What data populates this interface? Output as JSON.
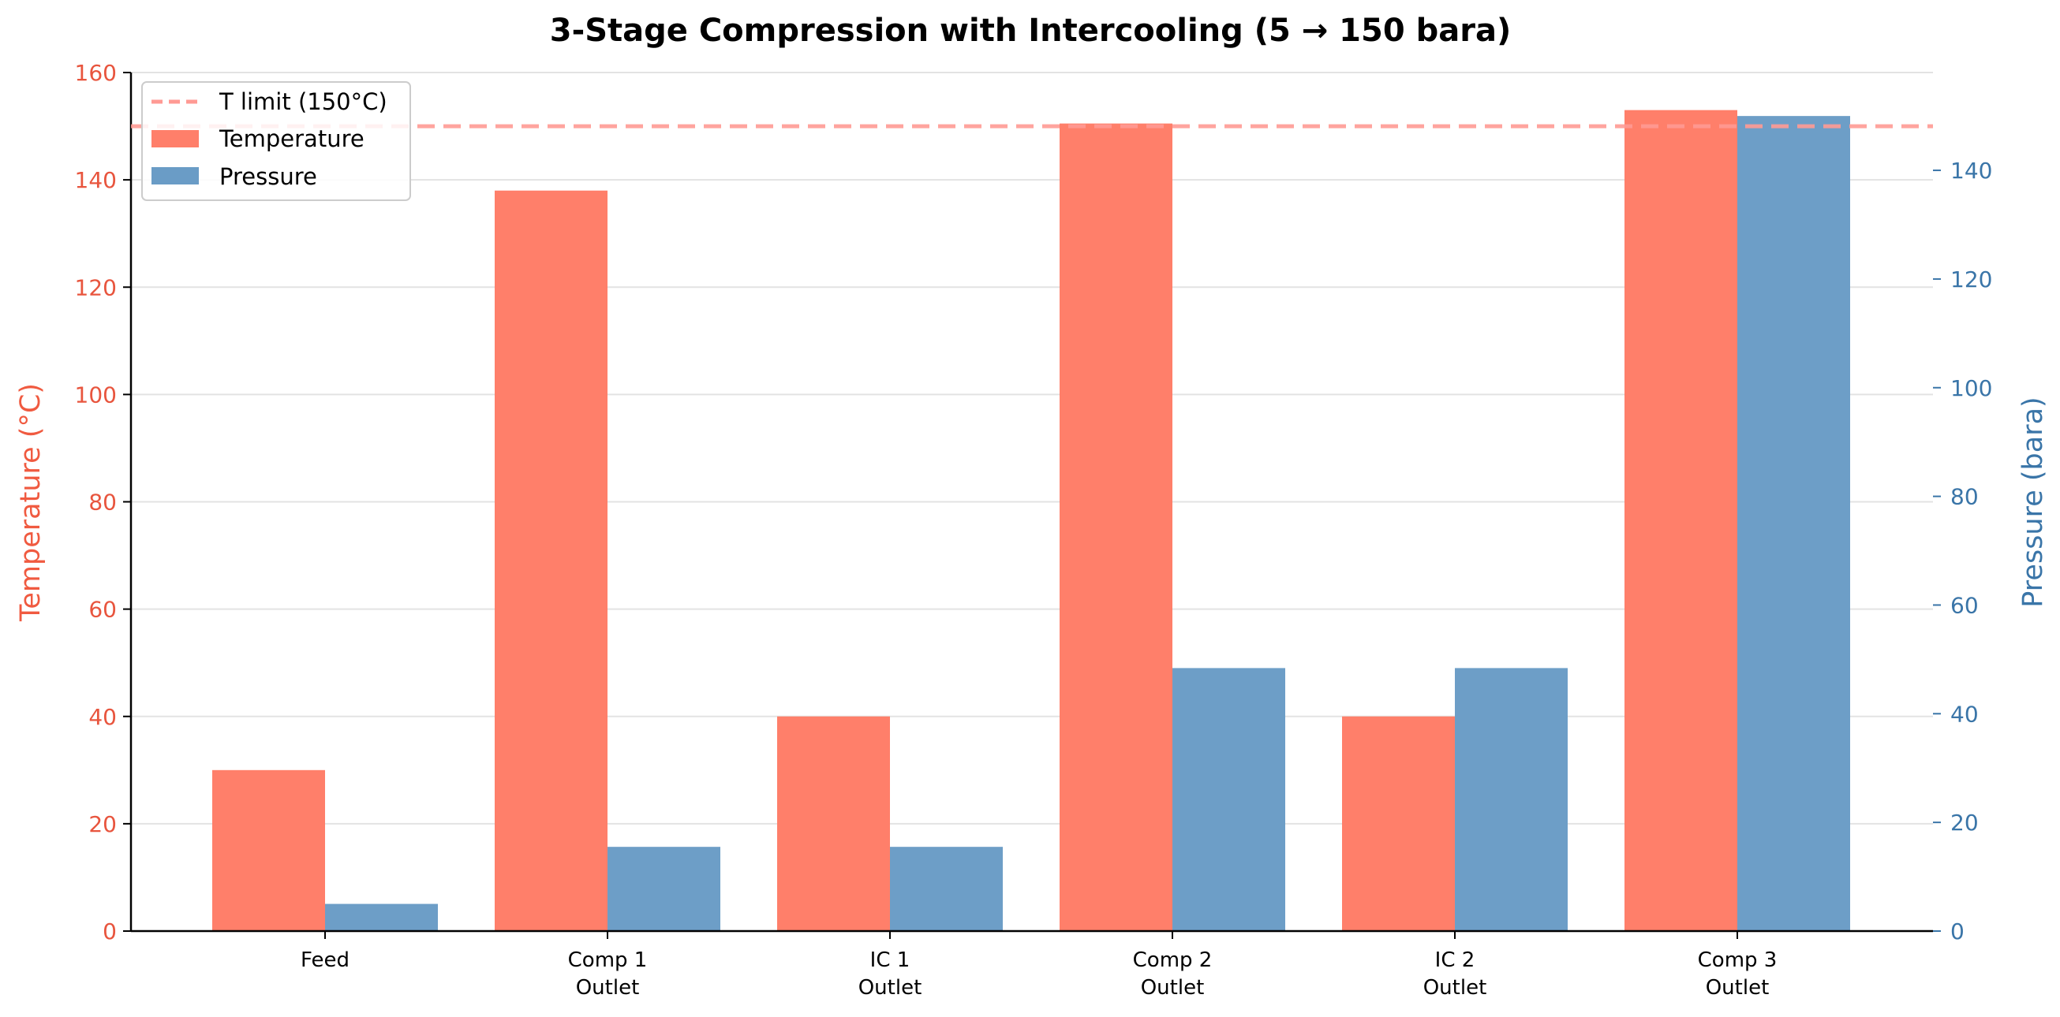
{
  "chart_data": {
    "type": "bar",
    "title": "3-Stage Compression with Intercooling (5 → 150 bara)",
    "categories": [
      [
        "Feed"
      ],
      [
        "Comp 1",
        "Outlet"
      ],
      [
        "IC 1",
        "Outlet"
      ],
      [
        "Comp 2",
        "Outlet"
      ],
      [
        "IC 2",
        "Outlet"
      ],
      [
        "Comp 3",
        "Outlet"
      ]
    ],
    "series": [
      {
        "name": "Temperature",
        "axis": "left",
        "color": "#ff7f6a",
        "values": [
          30,
          138,
          40,
          150.5,
          40,
          153
        ]
      },
      {
        "name": "Pressure",
        "axis": "right",
        "color": "#6a9cc6",
        "values": [
          5,
          15.5,
          15.5,
          48.4,
          48.4,
          150
        ]
      }
    ],
    "left_axis": {
      "label": "Temperature (°C)",
      "ylim": [
        0,
        160
      ],
      "ticks": [
        0,
        20,
        40,
        60,
        80,
        100,
        120,
        140,
        160
      ],
      "color": "#e8553e"
    },
    "right_axis": {
      "label": "Pressure (bara)",
      "ylim": [
        0,
        158
      ],
      "ticks": [
        0,
        20,
        40,
        60,
        80,
        100,
        120,
        140
      ],
      "color": "#3a75a8"
    },
    "reference_line": {
      "name": "T limit (150°C)",
      "value": 150,
      "axis": "left",
      "color": "#ff9a94",
      "style": "dashed"
    },
    "grid": true,
    "legend_position": "top-left"
  }
}
